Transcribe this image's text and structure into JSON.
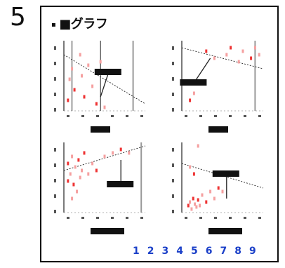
{
  "page": {
    "number": "5",
    "title": "■グラフ",
    "bullet": "▪"
  },
  "pagination": [
    "1",
    "2",
    "3",
    "4",
    "5",
    "6",
    "7",
    "8",
    "9"
  ],
  "colors": {
    "points": "#e33",
    "points_light": "#f5a0a0",
    "line": "#222",
    "grid_gray": "#999",
    "link": "#1a3fc8"
  },
  "chart_data": [
    {
      "type": "scatter",
      "series": [
        {
          "values": [
            [
              0.05,
              0.15
            ],
            [
              0.07,
              0.45
            ],
            [
              0.1,
              0.6
            ],
            [
              0.13,
              0.3
            ],
            [
              0.2,
              0.8
            ],
            [
              0.22,
              0.5
            ],
            [
              0.25,
              0.2
            ],
            [
              0.3,
              0.65
            ],
            [
              0.35,
              0.35
            ],
            [
              0.4,
              0.1
            ],
            [
              0.45,
              0.7
            ],
            [
              0.5,
              0.05
            ]
          ]
        }
      ],
      "trend": [
        [
          0.0,
          0.8
        ],
        [
          1.0,
          0.1
        ]
      ],
      "annotation_line": [
        [
          0.55,
          0.55
        ],
        [
          0.45,
          0.2
        ]
      ],
      "vlines": [
        0.1,
        0.45,
        0.85
      ]
    },
    {
      "type": "scatter",
      "series": [
        {
          "values": [
            [
              0.3,
              0.85
            ],
            [
              0.4,
              0.75
            ],
            [
              0.55,
              0.8
            ],
            [
              0.6,
              0.9
            ],
            [
              0.7,
              0.7
            ],
            [
              0.75,
              0.85
            ],
            [
              0.85,
              0.75
            ],
            [
              0.9,
              0.9
            ],
            [
              0.95,
              0.8
            ],
            [
              0.1,
              0.15
            ],
            [
              0.15,
              0.25
            ]
          ]
        }
      ],
      "trend": [
        [
          0.0,
          0.9
        ],
        [
          1.0,
          0.6
        ]
      ],
      "annotation_line": [
        [
          0.15,
          0.4
        ],
        [
          0.35,
          0.75
        ]
      ],
      "vlines": [
        0.9
      ]
    },
    {
      "type": "scatter",
      "series": [
        {
          "values": [
            [
              0.05,
              0.7
            ],
            [
              0.08,
              0.55
            ],
            [
              0.1,
              0.8
            ],
            [
              0.12,
              0.4
            ],
            [
              0.14,
              0.65
            ],
            [
              0.16,
              0.3
            ],
            [
              0.18,
              0.75
            ],
            [
              0.2,
              0.5
            ],
            [
              0.22,
              0.6
            ],
            [
              0.25,
              0.85
            ],
            [
              0.3,
              0.55
            ],
            [
              0.35,
              0.7
            ],
            [
              0.4,
              0.6
            ],
            [
              0.5,
              0.8
            ],
            [
              0.6,
              0.85
            ],
            [
              0.7,
              0.9
            ],
            [
              0.8,
              0.85
            ],
            [
              0.1,
              0.2
            ],
            [
              0.05,
              0.45
            ]
          ]
        }
      ],
      "trend": [
        [
          0.0,
          0.6
        ],
        [
          1.0,
          0.95
        ]
      ],
      "annotation_line": [
        [
          0.7,
          0.4
        ],
        [
          0.7,
          0.75
        ]
      ],
      "vlines": [
        0.95
      ]
    },
    {
      "type": "scatter",
      "series": [
        {
          "values": [
            [
              0.08,
              0.1
            ],
            [
              0.1,
              0.15
            ],
            [
              0.12,
              0.05
            ],
            [
              0.14,
              0.2
            ],
            [
              0.16,
              0.12
            ],
            [
              0.18,
              0.08
            ],
            [
              0.2,
              0.18
            ],
            [
              0.22,
              0.1
            ],
            [
              0.25,
              0.25
            ],
            [
              0.3,
              0.15
            ],
            [
              0.35,
              0.3
            ],
            [
              0.4,
              0.2
            ],
            [
              0.45,
              0.35
            ],
            [
              0.2,
              0.95
            ],
            [
              0.1,
              0.65
            ],
            [
              0.15,
              0.55
            ],
            [
              0.5,
              0.3
            ]
          ]
        }
      ],
      "trend": [
        [
          0.0,
          0.7
        ],
        [
          1.0,
          0.35
        ]
      ],
      "annotation_line": [
        [
          0.55,
          0.55
        ],
        [
          0.55,
          0.2
        ]
      ],
      "vlines": []
    }
  ]
}
